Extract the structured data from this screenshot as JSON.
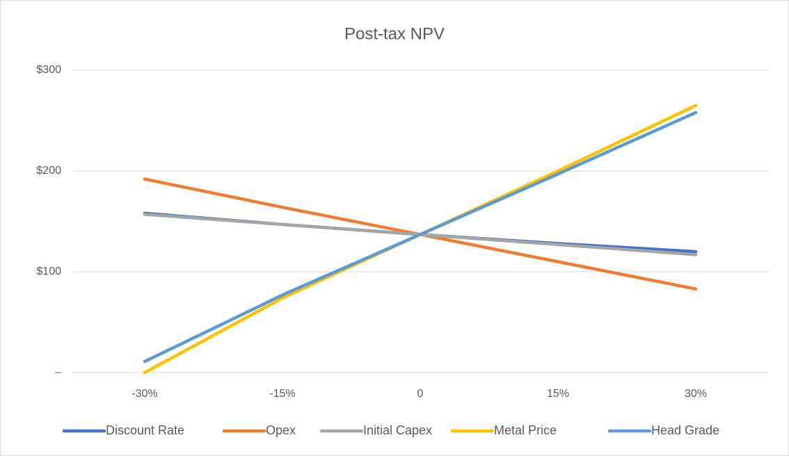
{
  "chart_data": {
    "type": "line",
    "title": "Post-tax NPV",
    "categories": [
      "-30%",
      "-15%",
      "0",
      "15%",
      "30%"
    ],
    "series": [
      {
        "name": "Discount Rate",
        "color": "#4472c4",
        "values": [
          158,
          147,
          137,
          128,
          120
        ]
      },
      {
        "name": "Opex",
        "color": "#ed7d31",
        "values": [
          192,
          164,
          137,
          110,
          83
        ]
      },
      {
        "name": "Initial Capex",
        "color": "#a5a5a5",
        "values": [
          157,
          147,
          137,
          127,
          117
        ]
      },
      {
        "name": "Metal Price",
        "color": "#ffc000",
        "values": [
          0,
          74,
          137,
          200,
          265
        ]
      },
      {
        "name": "Head Grade",
        "color": "#5b9bd5",
        "values": [
          11,
          77,
          137,
          197,
          258
        ]
      }
    ],
    "ylim": [
      0,
      300
    ],
    "yticks": [
      {
        "value": 0,
        "label": "–"
      },
      {
        "value": 100,
        "label": "$100"
      },
      {
        "value": 200,
        "label": "$200"
      },
      {
        "value": 300,
        "label": "$300"
      }
    ],
    "grid": true,
    "legend": "bottom"
  }
}
